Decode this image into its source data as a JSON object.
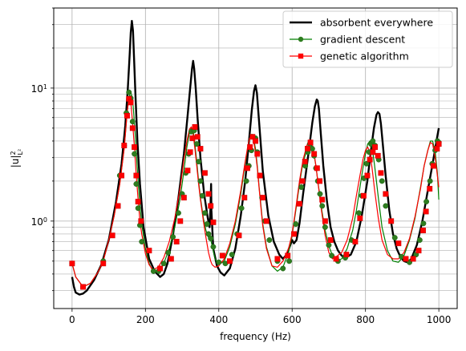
{
  "chart_data": {
    "type": "line",
    "xlabel": "frequency (Hz)",
    "ylabel_main": "|u|",
    "ylabel_sup": "2",
    "ylabel_sub": "L²",
    "y_scale": "log",
    "xlim": [
      -50,
      1050
    ],
    "ylim": [
      0.22,
      40
    ],
    "x_ticks": [
      0,
      200,
      400,
      600,
      800,
      1000
    ],
    "x_tick_labels": [
      "0",
      "200",
      "400",
      "600",
      "800",
      "1000"
    ],
    "y_major_ticks": [
      1,
      10
    ],
    "y_tick_labels": [
      {
        "base": "10",
        "exp": "0"
      },
      {
        "base": "10",
        "exp": "1"
      }
    ],
    "grid": true,
    "legend_position": "top-right",
    "series": [
      {
        "name": "absorbent everywhere",
        "color": "#000000",
        "marker": "none",
        "x": [
          0,
          5,
          10,
          20,
          30,
          40,
          60,
          80,
          100,
          120,
          135,
          145,
          152,
          157,
          160,
          163,
          166,
          169,
          173,
          178,
          185,
          195,
          210,
          225,
          240,
          250,
          260,
          275,
          290,
          305,
          315,
          322,
          327,
          330,
          333,
          337,
          342,
          350,
          360,
          370,
          375,
          377,
          379,
          380,
          385,
          395,
          405,
          415,
          430,
          445,
          460,
          472,
          482,
          490,
          496,
          500,
          504,
          510,
          520,
          535,
          550,
          565,
          575,
          585,
          595,
          600,
          605,
          612,
          620,
          630,
          645,
          655,
          662,
          667,
          670,
          673,
          678,
          685,
          695,
          705,
          715,
          725,
          735,
          745,
          760,
          775,
          790,
          805,
          815,
          823,
          830,
          834,
          838,
          842,
          848,
          855,
          865,
          875,
          885,
          895,
          905,
          915,
          925,
          940,
          955,
          970,
          985,
          995,
          1000
        ],
        "y": [
          0.38,
          0.32,
          0.29,
          0.28,
          0.285,
          0.3,
          0.36,
          0.47,
          0.72,
          1.4,
          2.7,
          5.2,
          10,
          18,
          26,
          32,
          27,
          17,
          8.5,
          4.0,
          1.9,
          0.9,
          0.52,
          0.42,
          0.38,
          0.4,
          0.48,
          0.78,
          1.5,
          3.2,
          6.2,
          10,
          14,
          16,
          14,
          10,
          6.0,
          3.0,
          1.6,
          1.05,
          0.9,
          1.2,
          1.9,
          1.2,
          0.62,
          0.46,
          0.41,
          0.39,
          0.44,
          0.62,
          1.1,
          2.0,
          3.9,
          6.8,
          9.5,
          10.5,
          9.2,
          5.5,
          2.4,
          1.1,
          0.7,
          0.56,
          0.52,
          0.56,
          0.66,
          0.72,
          0.68,
          0.72,
          0.96,
          1.6,
          3.3,
          5.5,
          7.3,
          8.2,
          8.0,
          7.0,
          4.6,
          2.6,
          1.4,
          0.9,
          0.7,
          0.6,
          0.55,
          0.53,
          0.56,
          0.7,
          1.1,
          2.0,
          3.4,
          5.0,
          6.3,
          6.6,
          6.4,
          5.4,
          3.6,
          2.2,
          1.2,
          0.8,
          0.62,
          0.54,
          0.5,
          0.49,
          0.52,
          0.66,
          1.0,
          1.7,
          2.9,
          4.2,
          5.0
        ]
      },
      {
        "name": "gradient descent",
        "color": "#008000",
        "marker": "circle",
        "x": [
          0,
          10,
          30,
          50,
          70,
          85,
          100,
          115,
          130,
          142,
          150,
          155,
          160,
          165,
          170,
          175,
          180,
          185,
          190,
          200,
          210,
          220,
          235,
          250,
          265,
          280,
          295,
          305,
          313,
          320,
          325,
          330,
          335,
          340,
          345,
          350,
          358,
          365,
          372,
          378,
          382,
          390,
          400,
          415,
          430,
          445,
          460,
          470,
          478,
          484,
          490,
          495,
          500,
          505,
          510,
          515,
          520,
          530,
          545,
          560,
          575,
          590,
          600,
          610,
          620,
          630,
          640,
          648,
          655,
          660,
          665,
          670,
          675,
          680,
          690,
          700,
          710,
          720,
          735,
          750,
          765,
          775,
          785,
          793,
          800,
          806,
          812,
          818,
          825,
          835,
          845,
          860,
          875,
          890,
          905,
          920,
          935,
          950,
          960,
          970,
          977,
          983,
          990,
          996,
          1000
        ],
        "y": [
          0.48,
          0.38,
          0.32,
          0.34,
          0.41,
          0.5,
          0.72,
          1.1,
          1.9,
          3.5,
          6.5,
          8.5,
          9.4,
          8.3,
          5.5,
          3.3,
          2.0,
          1.3,
          0.95,
          0.62,
          0.48,
          0.42,
          0.42,
          0.48,
          0.62,
          0.9,
          1.5,
          2.4,
          3.6,
          4.6,
          5.0,
          4.8,
          3.8,
          2.8,
          2.0,
          1.5,
          1.05,
          0.85,
          0.75,
          0.73,
          0.65,
          0.52,
          0.47,
          0.5,
          0.64,
          0.95,
          1.6,
          2.5,
          3.4,
          4.2,
          4.5,
          4.2,
          3.5,
          2.6,
          1.8,
          1.3,
          0.95,
          0.64,
          0.46,
          0.42,
          0.45,
          0.58,
          0.78,
          1.2,
          1.9,
          2.8,
          3.4,
          3.9,
          3.6,
          3.1,
          2.6,
          2.0,
          1.6,
          1.25,
          0.85,
          0.65,
          0.55,
          0.5,
          0.52,
          0.62,
          0.85,
          1.2,
          1.8,
          2.5,
          3.2,
          3.8,
          4.0,
          3.6,
          2.6,
          1.5,
          0.9,
          0.6,
          0.5,
          0.49,
          0.55,
          0.72,
          1.05,
          1.8,
          2.6,
          3.4,
          4.0,
          4.0,
          3.3,
          2.3,
          1.45
        ]
      },
      {
        "name": "genetic algorithm",
        "color": "#ff0000",
        "marker": "square",
        "x": [
          0,
          10,
          30,
          50,
          70,
          85,
          100,
          115,
          130,
          142,
          150,
          155,
          160,
          165,
          170,
          175,
          180,
          185,
          190,
          200,
          210,
          220,
          235,
          250,
          265,
          280,
          295,
          305,
          313,
          320,
          325,
          330,
          335,
          340,
          345,
          350,
          358,
          365,
          372,
          378,
          382,
          390,
          400,
          415,
          430,
          445,
          460,
          470,
          478,
          484,
          490,
          495,
          500,
          505,
          510,
          515,
          520,
          530,
          545,
          560,
          575,
          590,
          600,
          610,
          620,
          630,
          640,
          648,
          655,
          660,
          665,
          670,
          675,
          680,
          690,
          700,
          710,
          720,
          735,
          750,
          765,
          775,
          785,
          793,
          800,
          806,
          812,
          818,
          825,
          835,
          845,
          860,
          875,
          890,
          905,
          920,
          935,
          950,
          960,
          970,
          977,
          983,
          990,
          996,
          1000
        ],
        "y": [
          0.48,
          0.38,
          0.32,
          0.34,
          0.41,
          0.5,
          0.72,
          1.1,
          1.9,
          3.5,
          6.5,
          8.5,
          7.9,
          5.5,
          3.6,
          2.2,
          1.45,
          1.0,
          0.8,
          0.57,
          0.47,
          0.43,
          0.45,
          0.53,
          0.7,
          1.05,
          1.8,
          2.9,
          4.0,
          4.9,
          5.1,
          4.5,
          3.5,
          2.6,
          1.9,
          1.45,
          1.0,
          0.75,
          0.58,
          0.5,
          0.47,
          0.45,
          0.46,
          0.52,
          0.68,
          1.0,
          1.7,
          2.6,
          3.5,
          4.2,
          4.35,
          4.0,
          3.3,
          2.5,
          1.75,
          1.25,
          0.92,
          0.62,
          0.46,
          0.45,
          0.5,
          0.62,
          0.8,
          1.25,
          2.0,
          2.9,
          3.7,
          4.1,
          3.8,
          3.2,
          2.6,
          2.0,
          1.55,
          1.2,
          0.78,
          0.58,
          0.52,
          0.54,
          0.58,
          0.72,
          1.05,
          1.55,
          2.2,
          2.9,
          3.4,
          3.6,
          3.3,
          2.5,
          1.7,
          1.05,
          0.72,
          0.56,
          0.52,
          0.52,
          0.58,
          0.74,
          1.08,
          1.75,
          2.6,
          3.4,
          3.9,
          3.8,
          3.0,
          2.2,
          1.8
        ]
      }
    ],
    "marker_points": {
      "gradient descent": {
        "x": [
          0,
          30,
          85,
          130,
          142,
          148,
          155,
          160,
          165,
          170,
          175,
          180,
          185,
          190,
          222,
          236,
          250,
          262,
          275,
          290,
          300,
          310,
          318,
          325,
          333,
          340,
          345,
          350,
          355,
          362,
          368,
          372,
          378,
          385,
          400,
          418,
          436,
          450,
          462,
          475,
          482,
          489,
          493,
          500,
          505,
          512,
          518,
          526,
          538,
          560,
          575,
          592,
          610,
          625,
          636,
          643,
          648,
          655,
          660,
          665,
          670,
          676,
          682,
          690,
          700,
          708,
          725,
          745,
          762,
          782,
          790,
          796,
          803,
          810,
          815,
          820,
          826,
          836,
          845,
          855,
          880,
          898,
          920,
          938,
          948,
          958,
          966,
          976,
          982,
          990,
          996,
          1000
        ],
        "y": [
          0.48,
          0.32,
          0.5,
          2.2,
          3.7,
          6.5,
          9.3,
          8.4,
          5.6,
          3.2,
          1.9,
          1.25,
          0.93,
          0.7,
          0.42,
          0.42,
          0.48,
          0.58,
          0.76,
          1.15,
          1.6,
          2.3,
          3.2,
          4.7,
          4.8,
          3.8,
          2.8,
          2.0,
          1.55,
          1.15,
          0.95,
          0.8,
          0.74,
          0.64,
          0.49,
          0.48,
          0.56,
          0.8,
          1.25,
          2.0,
          2.6,
          3.4,
          4.3,
          4.2,
          3.3,
          2.2,
          1.5,
          1.0,
          0.72,
          0.5,
          0.44,
          0.5,
          0.95,
          1.8,
          2.6,
          3.3,
          3.8,
          3.5,
          3.1,
          2.5,
          2.0,
          1.6,
          1.3,
          0.9,
          0.66,
          0.55,
          0.5,
          0.53,
          0.72,
          1.15,
          1.55,
          2.1,
          2.7,
          3.3,
          3.8,
          4.0,
          3.7,
          2.9,
          2.0,
          1.3,
          0.75,
          0.54,
          0.49,
          0.56,
          0.72,
          0.96,
          1.4,
          2.0,
          2.7,
          3.4,
          4.0,
          3.9
        ]
      },
      "genetic algorithm": {
        "x": [
          0,
          30,
          85,
          110,
          125,
          135,
          142,
          150,
          155,
          160,
          165,
          170,
          175,
          180,
          188,
          210,
          240,
          270,
          285,
          295,
          305,
          315,
          322,
          328,
          335,
          342,
          350,
          362,
          372,
          378,
          385,
          410,
          430,
          455,
          470,
          478,
          485,
          492,
          500,
          505,
          512,
          520,
          530,
          560,
          588,
          605,
          620,
          628,
          635,
          642,
          650,
          660,
          668,
          675,
          682,
          690,
          705,
          720,
          748,
          772,
          785,
          795,
          805,
          812,
          820,
          826,
          834,
          842,
          855,
          870,
          890,
          910,
          930,
          945,
          957,
          965,
          975,
          985,
          995,
          1000
        ],
        "y": [
          0.48,
          0.32,
          0.48,
          0.78,
          1.3,
          2.2,
          3.7,
          6.2,
          8.3,
          7.8,
          5.0,
          3.6,
          2.2,
          1.4,
          1.0,
          0.6,
          0.44,
          0.52,
          0.7,
          1.0,
          1.5,
          2.4,
          3.3,
          4.2,
          5.1,
          4.3,
          3.5,
          2.3,
          1.6,
          1.3,
          0.98,
          0.55,
          0.5,
          0.78,
          1.5,
          2.5,
          3.6,
          4.3,
          4.0,
          3.2,
          2.2,
          1.5,
          1.0,
          0.52,
          0.55,
          0.8,
          1.35,
          2.0,
          2.8,
          3.5,
          3.9,
          3.2,
          2.5,
          2.0,
          1.45,
          1.0,
          0.72,
          0.52,
          0.56,
          0.7,
          1.05,
          1.55,
          2.2,
          2.9,
          3.3,
          3.6,
          3.1,
          2.3,
          1.6,
          1.0,
          0.68,
          0.52,
          0.52,
          0.6,
          0.85,
          1.18,
          1.75,
          2.6,
          3.5,
          3.8
        ]
      }
    }
  }
}
